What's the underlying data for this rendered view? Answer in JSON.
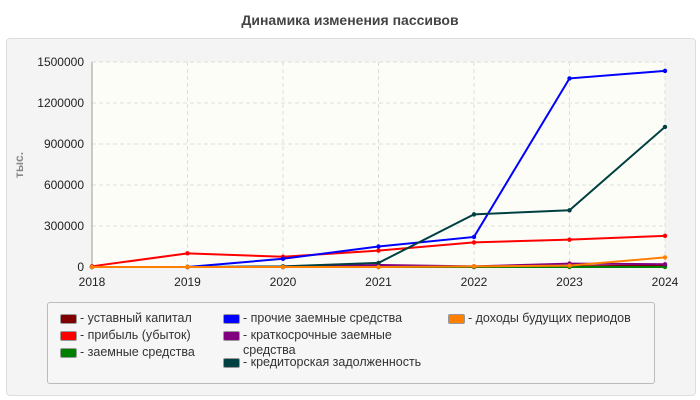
{
  "chart_data": {
    "type": "line",
    "title": "Динамика изменения пассивов",
    "ylabel": "тыс.",
    "xlabel": "",
    "categories": [
      "2018",
      "2019",
      "2020",
      "2021",
      "2022",
      "2023",
      "2024"
    ],
    "ylim": [
      0,
      1500000
    ],
    "yticks": [
      "0",
      "300000",
      "600000",
      "900000",
      "1200000",
      "1500000"
    ],
    "grid": true,
    "legend_position": "bottom",
    "series": [
      {
        "name": "уставный капитал",
        "color": "#7f0000",
        "values": [
          0,
          0,
          0,
          0,
          0,
          5000,
          10000
        ]
      },
      {
        "name": "прибыль (убыток)",
        "color": "#ff0000",
        "values": [
          5000,
          100000,
          75000,
          120000,
          180000,
          200000,
          228000
        ]
      },
      {
        "name": "заемные средства",
        "color": "#008000",
        "values": [
          0,
          0,
          0,
          0,
          0,
          0,
          0
        ]
      },
      {
        "name": "прочие заемные средства",
        "color": "#0000ff",
        "values": [
          null,
          0,
          60000,
          150000,
          220000,
          1380000,
          1435000
        ]
      },
      {
        "name": "краткосрочные заемные средства",
        "color": "#800080",
        "values": [
          0,
          0,
          0,
          15000,
          5000,
          25000,
          20000
        ]
      },
      {
        "name": "кредиторская задолженность",
        "color": "#004040",
        "values": [
          0,
          0,
          5000,
          30000,
          385000,
          415000,
          1025000
        ]
      },
      {
        "name": "доходы будущих периодов",
        "color": "#ff8000",
        "values": [
          0,
          0,
          0,
          0,
          5000,
          10000,
          70000
        ]
      }
    ]
  }
}
